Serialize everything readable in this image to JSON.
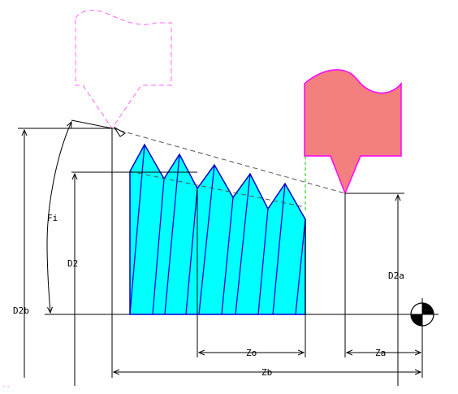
{
  "labels": {
    "fi": "Fi",
    "d2": "D2",
    "d2b": "D2b",
    "d2a": "D2a",
    "zo": "Zo",
    "za": "Za",
    "zb": "Zb"
  },
  "colors": {
    "thread_fill": "#00ffff",
    "thread_line": "#0000cc",
    "tool_fill": "#f47f7f",
    "tool_outline": "#ff00ff",
    "ghost_tool": "#ff66ff",
    "guide_line": "#00cc00",
    "dimension": "#000000",
    "origin_symbol": "#000000"
  },
  "icons": {
    "origin": "workpiece-zero-point-icon",
    "tool": "threading-tool-icon"
  }
}
